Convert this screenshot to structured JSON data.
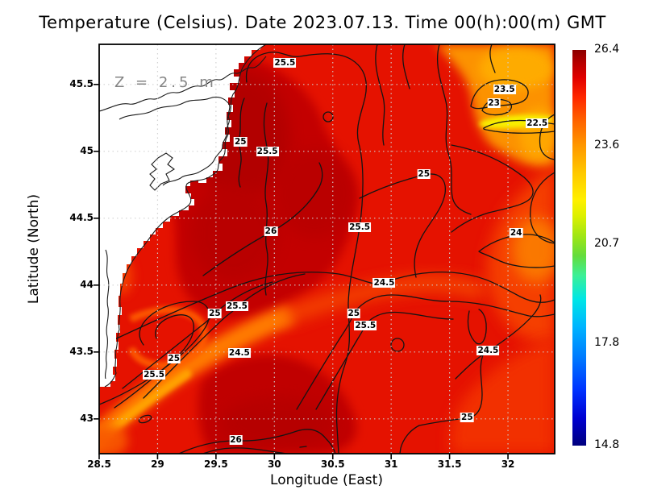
{
  "chart_data": {
    "type": "heatmap",
    "title": "Temperature (Celsius). Date 2023.07.13. Time 00(h):00(m) GMT",
    "xlabel": "Longitude (East)",
    "ylabel": "Latitude (North)",
    "depth_label": "Z = 2.5 m",
    "units": "Celsius",
    "xlim": [
      28.5,
      32.4
    ],
    "ylim": [
      42.74,
      45.8
    ],
    "x_ticks": [
      "28.5",
      "29",
      "29.5",
      "30",
      "30.5",
      "31",
      "31.5",
      "32"
    ],
    "y_ticks": [
      "45.5",
      "45",
      "44.5",
      "44",
      "43.5",
      "43"
    ],
    "grid": true,
    "contour_interval": 0.5,
    "colorbar": {
      "min": 14.8,
      "max": 26.4,
      "ticks": [
        "26.4",
        "23.6",
        "20.7",
        "17.8",
        "14.8"
      ],
      "colormap": "jet"
    },
    "contour_labels": [
      {
        "value": "25.5",
        "lon": 30.09,
        "lat": 45.66
      },
      {
        "value": "25",
        "lon": 29.71,
        "lat": 45.07
      },
      {
        "value": "25.5",
        "lon": 29.94,
        "lat": 45.0
      },
      {
        "value": "23.5",
        "lon": 31.97,
        "lat": 45.46
      },
      {
        "value": "23",
        "lon": 31.88,
        "lat": 45.36
      },
      {
        "value": "22.5",
        "lon": 32.25,
        "lat": 45.21
      },
      {
        "value": "25",
        "lon": 31.28,
        "lat": 44.83
      },
      {
        "value": "25.5",
        "lon": 30.73,
        "lat": 44.43
      },
      {
        "value": "26",
        "lon": 29.97,
        "lat": 44.4
      },
      {
        "value": "24",
        "lon": 32.07,
        "lat": 44.39
      },
      {
        "value": "24.5",
        "lon": 30.94,
        "lat": 44.02
      },
      {
        "value": "25.5",
        "lon": 29.68,
        "lat": 43.84
      },
      {
        "value": "25",
        "lon": 29.49,
        "lat": 43.79
      },
      {
        "value": "25",
        "lon": 30.68,
        "lat": 43.79
      },
      {
        "value": "25.5",
        "lon": 30.78,
        "lat": 43.7
      },
      {
        "value": "24.5",
        "lon": 29.7,
        "lat": 43.49
      },
      {
        "value": "25",
        "lon": 29.14,
        "lat": 43.45
      },
      {
        "value": "25.5",
        "lon": 28.97,
        "lat": 43.33
      },
      {
        "value": "24.5",
        "lon": 31.83,
        "lat": 43.51
      },
      {
        "value": "25",
        "lon": 31.65,
        "lat": 43.01
      },
      {
        "value": "26",
        "lon": 29.67,
        "lat": 42.84
      }
    ]
  },
  "colors": {
    "sea_base": "#e51200",
    "sea_dark_red": "#b30000",
    "filament_orange": "#ff7a00",
    "cool_region_orange": "#fc9200",
    "cool_patch_yellow": "#f8f000",
    "land": "#ffffff",
    "coastline": "#1a1a1a",
    "contour": "#141414",
    "gridline": "#d0d0d0",
    "annotation_gray": "#848484"
  }
}
